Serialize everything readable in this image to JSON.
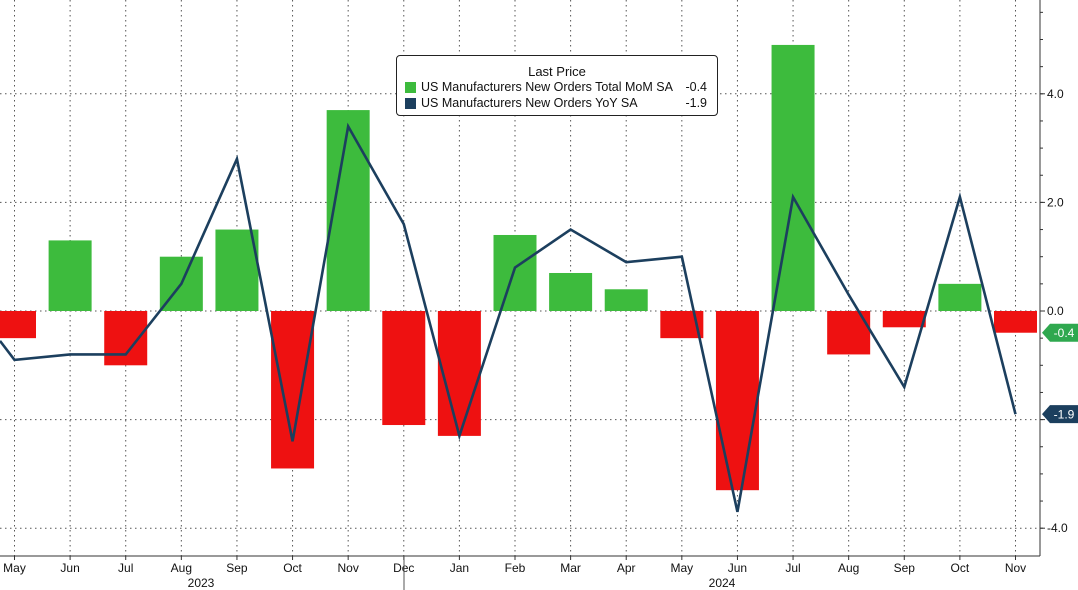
{
  "chart_data": {
    "type": "bar+line",
    "categories": [
      "May",
      "Jun",
      "Jul",
      "Aug",
      "Sep",
      "Oct",
      "Nov",
      "Dec",
      "Jan",
      "Feb",
      "Mar",
      "Apr",
      "May",
      "Jun",
      "Jul",
      "Aug",
      "Sep",
      "Oct",
      "Nov"
    ],
    "year_labels": [
      {
        "label": "2023",
        "from": 0,
        "to": 7
      },
      {
        "label": "2024",
        "from": 8,
        "to": 18
      }
    ],
    "series": [
      {
        "name": "US Manufacturers New Orders Total MoM SA",
        "type": "bar",
        "values": [
          -0.5,
          1.3,
          -1.0,
          1.0,
          1.5,
          -2.9,
          3.7,
          -2.1,
          -2.3,
          1.4,
          0.7,
          0.4,
          -0.5,
          -3.3,
          4.9,
          -0.8,
          -0.3,
          0.5,
          -0.4
        ],
        "last": "-0.4",
        "color_pos": "#3dbb3d",
        "color_neg": "#ee1111",
        "badge_color": "#2fa84f"
      },
      {
        "name": "US Manufacturers New Orders YoY SA",
        "type": "line",
        "values": [
          -0.9,
          -0.8,
          -0.8,
          0.5,
          2.8,
          -2.4,
          3.4,
          1.6,
          -2.3,
          0.8,
          1.5,
          0.9,
          1.0,
          -3.7,
          2.1,
          0.3,
          -1.4,
          2.1,
          -1.9
        ],
        "last": "-1.9",
        "color": "#1c3f5e",
        "badge_color": "#1c3f5e"
      }
    ],
    "y_axis": {
      "min": -4.4,
      "max": 5.7,
      "ticks": [
        4.0,
        2.0,
        0.0,
        -2.0,
        -4.0
      ],
      "tick_labels": [
        "4.0",
        "2.0",
        "0.0",
        "",
        "-4.0"
      ],
      "position": "right"
    },
    "grid": true,
    "legend": {
      "title": "Last Price",
      "placement": "top-center"
    }
  }
}
